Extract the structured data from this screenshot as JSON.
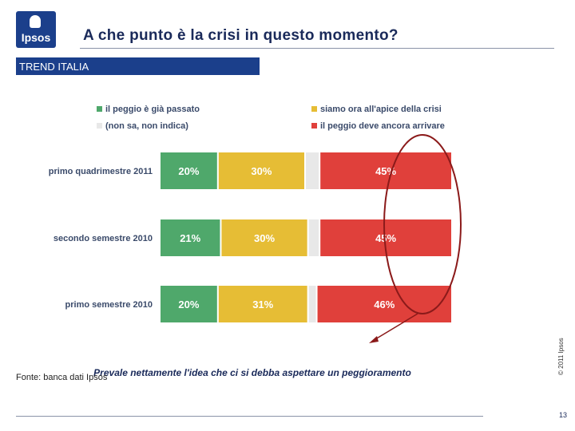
{
  "header": {
    "logo_text": "Ipsos",
    "title": "A che punto è la crisi in questo momento?"
  },
  "section_label": "TREND ITALIA",
  "copyright": "© 2011 Ipsos",
  "footer": {
    "source": "Fonte: banca dati Ipsos",
    "page_number": "13"
  },
  "annotation": "Prevale nettamente l'idea che ci si debba aspettare un peggioramento",
  "colors": {
    "green": "#4fa86b",
    "yellow": "#e6bd35",
    "grey": "#e8e8e8",
    "red": "#e0403b",
    "accent": "#1b3f8b",
    "circle": "#8b1a1a"
  },
  "chart_data": {
    "type": "bar",
    "stacked": true,
    "orientation": "horizontal",
    "legend_position": "top",
    "categories": [
      "primo quadrimestre 2011",
      "secondo semestre 2010",
      "primo semestre 2010"
    ],
    "series": [
      {
        "name": "il peggio è già passato",
        "color": "#4fa86b",
        "values": [
          20,
          21,
          20
        ],
        "labels": [
          "20%",
          "21%",
          "20%"
        ]
      },
      {
        "name": "siamo ora all'apice della crisi",
        "color": "#e6bd35",
        "values": [
          30,
          30,
          31
        ],
        "labels": [
          "30%",
          "30%",
          "31%"
        ]
      },
      {
        "name": "(non sa, non indica)",
        "color": "#e8e8e8",
        "values": [
          5,
          4,
          3
        ],
        "labels": [
          "",
          "",
          ""
        ]
      },
      {
        "name": "il peggio deve ancora arrivare",
        "color": "#e0403b",
        "values": [
          45,
          45,
          46
        ],
        "labels": [
          "45%",
          "45%",
          "46%"
        ]
      }
    ],
    "legend_order": [
      0,
      1,
      2,
      3
    ]
  }
}
